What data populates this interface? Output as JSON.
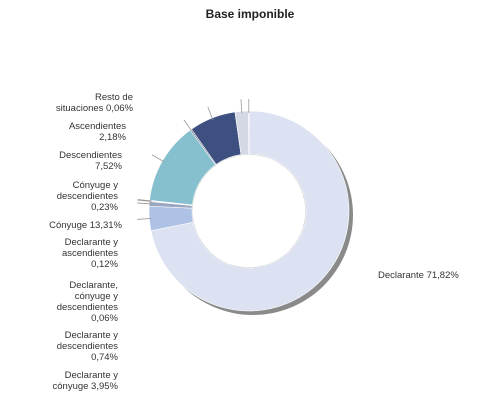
{
  "chart_data": {
    "type": "donut",
    "title": "Base imponible",
    "slices": [
      {
        "label": "Declarante",
        "value": 71.82,
        "value_text": "Declarante 71,82%",
        "color": "#dde2f2"
      },
      {
        "label": "Declarante y cónyuge",
        "value": 3.95,
        "value_text": "Declarante y\ncónyuge 3,95%",
        "color": "#aec2e6"
      },
      {
        "label": "Declarante y descendientes",
        "value": 0.74,
        "value_text": "Declarante y\ndescendientes\n0,74%",
        "color": "#9aa6bf"
      },
      {
        "label": "Declarante, cónyuge y descendientes",
        "value": 0.06,
        "value_text": "Declarante,\ncónyuge y\ndescendientes\n0,06%",
        "color": "#c8cfdd"
      },
      {
        "label": "Declarante y ascendientes",
        "value": 0.12,
        "value_text": "Declarante y\nascendientes\n0,12%",
        "color": "#7c8aa6"
      },
      {
        "label": "Cónyuge",
        "value": 13.31,
        "value_text": "Cónyuge 13,31%",
        "color": "#86bfce"
      },
      {
        "label": "Cónyuge y descendientes",
        "value": 0.23,
        "value_text": "Cónyuge y\ndescendientes\n0,23%",
        "color": "#5e6a80"
      },
      {
        "label": "Descendientes",
        "value": 7.52,
        "value_text": "Descendientes\n7,52%",
        "color": "#3d5080"
      },
      {
        "label": "Ascendientes",
        "value": 2.18,
        "value_text": "Ascendientes\n2,18%",
        "color": "#d4d8e4"
      },
      {
        "label": "Resto de situaciones",
        "value": 0.06,
        "value_text": "Resto de\nsituaciones 0,06%",
        "color": "#8f97a8"
      }
    ],
    "start": "top",
    "direction": "clockwise",
    "legend": "none",
    "data_labels": "outside"
  }
}
